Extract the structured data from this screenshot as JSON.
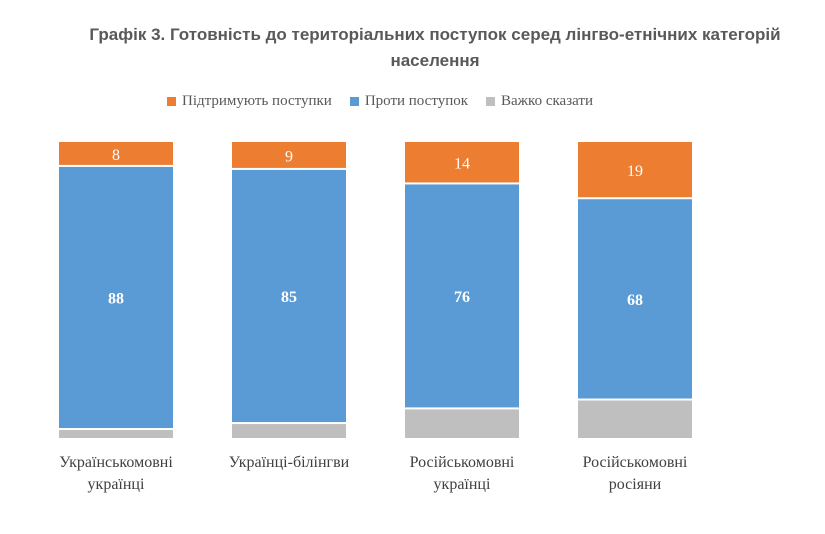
{
  "title_line1": "Графік 3. Готовність до територіальних поступок серед лінгво-етнічних категорій",
  "title_line2": "населення",
  "legend": [
    {
      "label": "Підтримують поступки",
      "color": "#ED7D31"
    },
    {
      "label": "Проти поступок",
      "color": "#5B9BD5"
    },
    {
      "label": "Важко сказати",
      "color": "#BFBFBF"
    }
  ],
  "chart_data": {
    "type": "bar",
    "stacked": true,
    "normalized": true,
    "categories": [
      [
        "Українськомовні",
        "українці"
      ],
      [
        "Українці-білінгви"
      ],
      [
        "Російськомовні",
        "українці"
      ],
      [
        "Російськомовні",
        "росіяни"
      ]
    ],
    "series": [
      {
        "name": "Підтримують поступки",
        "values": [
          8,
          9,
          14,
          19
        ],
        "color": "#ED7D31"
      },
      {
        "name": "Проти поступок",
        "values": [
          88,
          85,
          76,
          68
        ],
        "color": "#5B9BD5"
      },
      {
        "name": "Важко сказати",
        "values": [
          3,
          5,
          10,
          13
        ],
        "color": "#BFBFBF"
      }
    ],
    "data_labels": {
      "Підтримують поступки": true,
      "Проти поступок": true,
      "Важко сказати": false
    },
    "grid": false,
    "legend_position": "top"
  }
}
